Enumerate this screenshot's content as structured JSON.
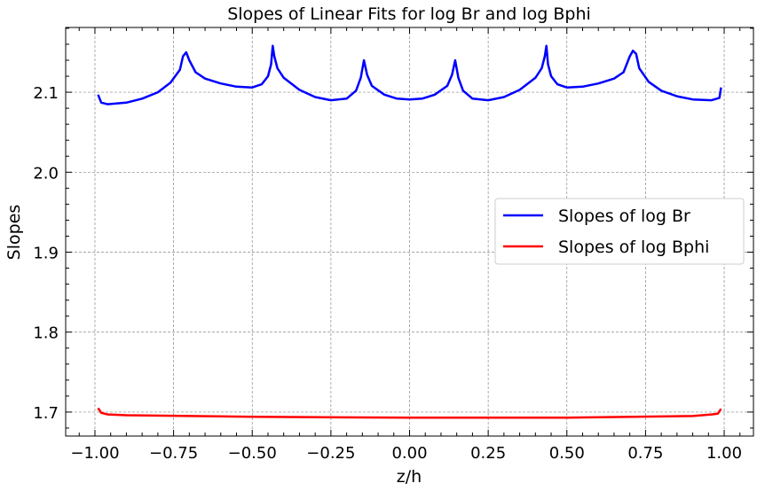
{
  "chart_data": {
    "type": "line",
    "title": "Slopes of Linear Fits for log Br and log Bphi",
    "xlabel": "z/h",
    "ylabel": "Slopes",
    "xlim": [
      -1.093,
      1.093
    ],
    "ylim": [
      1.67,
      2.181
    ],
    "xticks": [
      -1.0,
      -0.75,
      -0.5,
      -0.25,
      0.0,
      0.25,
      0.5,
      0.75,
      1.0
    ],
    "xtick_labels": [
      "−1.00",
      "−0.75",
      "−0.50",
      "−0.25",
      "0.00",
      "0.25",
      "0.50",
      "0.75",
      "1.00"
    ],
    "yticks": [
      1.7,
      1.8,
      1.9,
      2.0,
      2.1
    ],
    "ytick_labels": [
      "1.7",
      "1.8",
      "1.9",
      "2.0",
      "2.1"
    ],
    "grid": true,
    "legend_position": "center-right",
    "series": [
      {
        "name": "Slopes of log Br",
        "color": "#0000ff",
        "x": [
          -0.99,
          -0.98,
          -0.96,
          -0.9,
          -0.85,
          -0.8,
          -0.76,
          -0.73,
          -0.72,
          -0.71,
          -0.7,
          -0.68,
          -0.65,
          -0.6,
          -0.55,
          -0.5,
          -0.47,
          -0.45,
          -0.44,
          -0.435,
          -0.43,
          -0.42,
          -0.4,
          -0.35,
          -0.3,
          -0.25,
          -0.2,
          -0.17,
          -0.155,
          -0.145,
          -0.135,
          -0.12,
          -0.08,
          -0.04,
          0,
          0.04,
          0.08,
          0.12,
          0.135,
          0.145,
          0.155,
          0.17,
          0.2,
          0.25,
          0.3,
          0.35,
          0.4,
          0.42,
          0.43,
          0.435,
          0.44,
          0.45,
          0.47,
          0.5,
          0.55,
          0.6,
          0.65,
          0.68,
          0.7,
          0.71,
          0.72,
          0.73,
          0.76,
          0.8,
          0.85,
          0.9,
          0.96,
          0.985,
          0.99
        ],
        "y": [
          2.097,
          2.087,
          2.085,
          2.087,
          2.092,
          2.1,
          2.112,
          2.128,
          2.145,
          2.15,
          2.14,
          2.125,
          2.117,
          2.111,
          2.107,
          2.106,
          2.11,
          2.12,
          2.135,
          2.158,
          2.145,
          2.13,
          2.118,
          2.103,
          2.094,
          2.09,
          2.092,
          2.102,
          2.118,
          2.14,
          2.122,
          2.108,
          2.097,
          2.092,
          2.091,
          2.092,
          2.097,
          2.108,
          2.122,
          2.14,
          2.118,
          2.102,
          2.092,
          2.09,
          2.094,
          2.103,
          2.118,
          2.13,
          2.145,
          2.158,
          2.135,
          2.12,
          2.11,
          2.106,
          2.107,
          2.111,
          2.117,
          2.125,
          2.145,
          2.152,
          2.148,
          2.13,
          2.113,
          2.102,
          2.095,
          2.091,
          2.09,
          2.093,
          2.106
        ]
      },
      {
        "name": "Slopes of log Bphi",
        "color": "#ff0000",
        "x": [
          -0.99,
          -0.98,
          -0.96,
          -0.9,
          -0.5,
          0,
          0.5,
          0.9,
          0.96,
          0.98,
          0.99
        ],
        "y": [
          1.705,
          1.699,
          1.697,
          1.696,
          1.694,
          1.693,
          1.693,
          1.695,
          1.697,
          1.698,
          1.704
        ]
      }
    ]
  }
}
